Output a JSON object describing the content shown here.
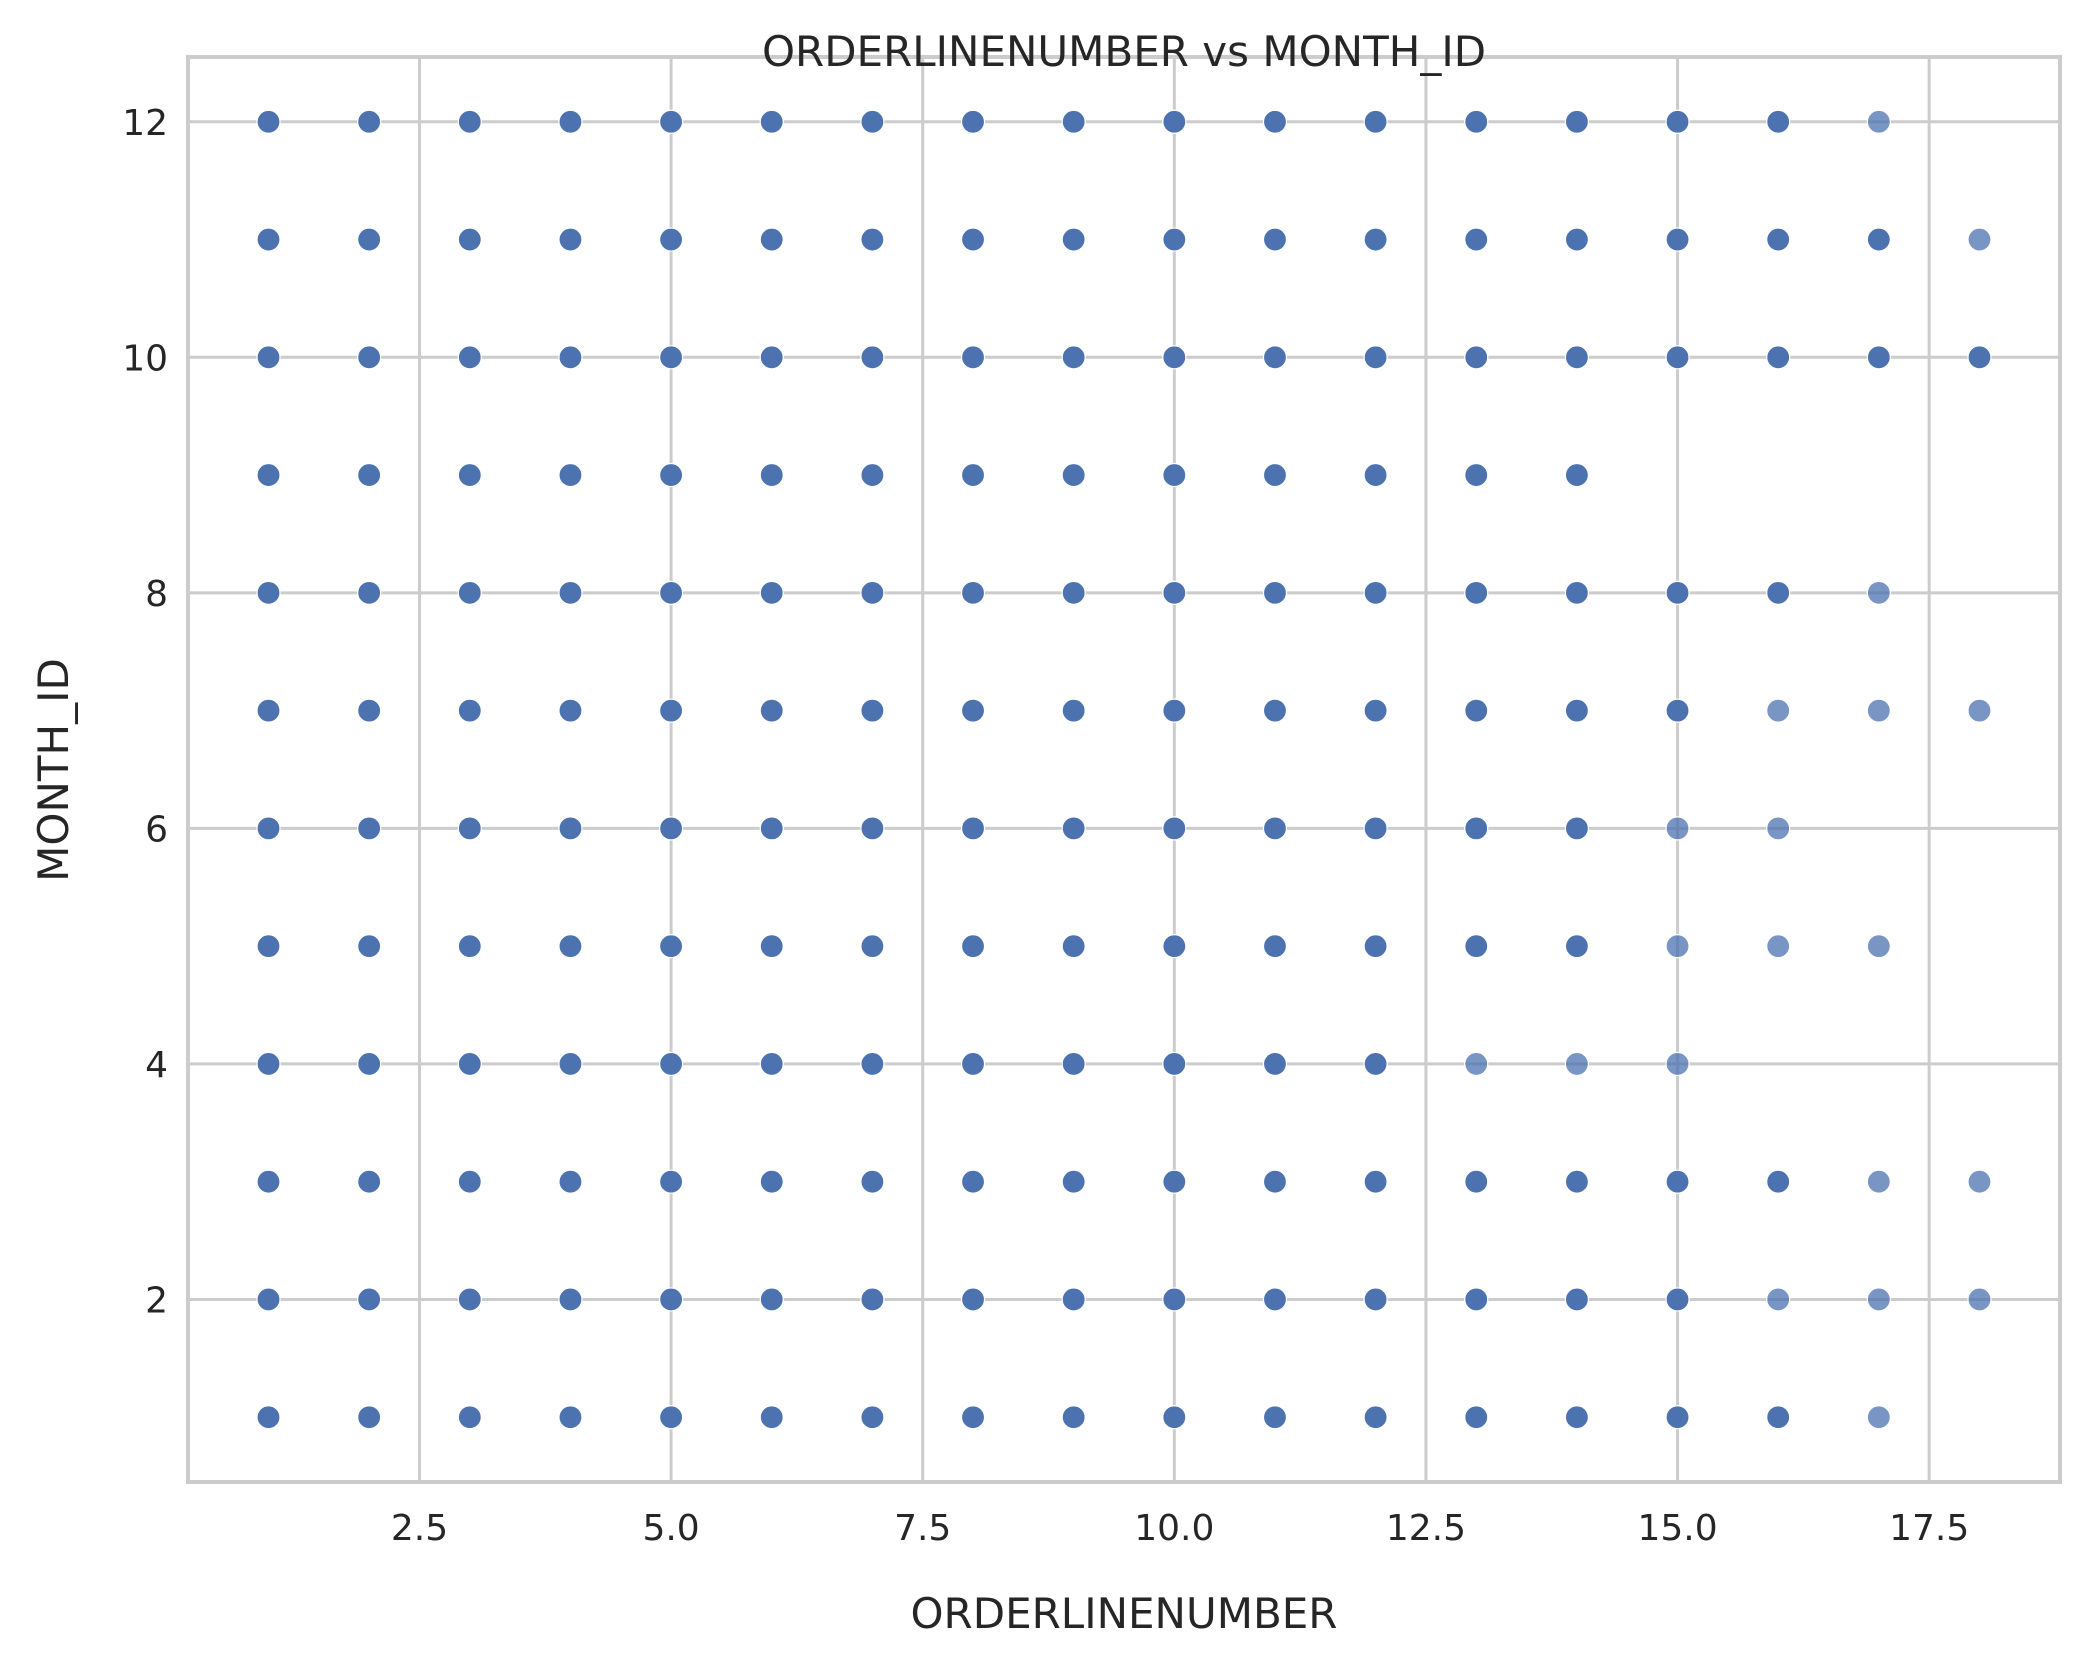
{
  "chart_data": {
    "type": "scatter",
    "title": "ORDERLINENUMBER vs MONTH_ID",
    "xlabel": "ORDERLINENUMBER",
    "ylabel": "MONTH_ID",
    "xlim": [
      0.2,
      18.8
    ],
    "ylim": [
      0.45,
      12.55
    ],
    "xticks": [
      2.5,
      5.0,
      7.5,
      10.0,
      12.5,
      15.0,
      17.5
    ],
    "xtick_labels": [
      "2.5",
      "5.0",
      "7.5",
      "10.0",
      "12.5",
      "15.0",
      "17.5"
    ],
    "yticks": [
      2,
      4,
      6,
      8,
      10,
      12
    ],
    "ytick_labels": [
      "2",
      "4",
      "6",
      "8",
      "10",
      "12"
    ],
    "grid": true,
    "marker_color": "#4c72b0",
    "series": [
      {
        "points": [
          [
            1,
            12
          ],
          [
            2,
            12
          ],
          [
            3,
            12
          ],
          [
            4,
            12
          ],
          [
            5,
            12
          ],
          [
            6,
            12
          ],
          [
            7,
            12
          ],
          [
            8,
            12
          ],
          [
            9,
            12
          ],
          [
            10,
            12
          ],
          [
            11,
            12
          ],
          [
            12,
            12
          ],
          [
            13,
            12
          ],
          [
            14,
            12
          ],
          [
            15,
            12
          ],
          [
            16,
            12
          ],
          [
            17,
            12
          ],
          [
            1,
            11
          ],
          [
            2,
            11
          ],
          [
            3,
            11
          ],
          [
            4,
            11
          ],
          [
            5,
            11
          ],
          [
            6,
            11
          ],
          [
            7,
            11
          ],
          [
            8,
            11
          ],
          [
            9,
            11
          ],
          [
            10,
            11
          ],
          [
            11,
            11
          ],
          [
            12,
            11
          ],
          [
            13,
            11
          ],
          [
            14,
            11
          ],
          [
            15,
            11
          ],
          [
            16,
            11
          ],
          [
            17,
            11
          ],
          [
            18,
            11
          ],
          [
            1,
            10
          ],
          [
            2,
            10
          ],
          [
            3,
            10
          ],
          [
            4,
            10
          ],
          [
            5,
            10
          ],
          [
            6,
            10
          ],
          [
            7,
            10
          ],
          [
            8,
            10
          ],
          [
            9,
            10
          ],
          [
            10,
            10
          ],
          [
            11,
            10
          ],
          [
            12,
            10
          ],
          [
            13,
            10
          ],
          [
            14,
            10
          ],
          [
            15,
            10
          ],
          [
            16,
            10
          ],
          [
            17,
            10
          ],
          [
            18,
            10
          ],
          [
            1,
            9
          ],
          [
            2,
            9
          ],
          [
            3,
            9
          ],
          [
            4,
            9
          ],
          [
            5,
            9
          ],
          [
            6,
            9
          ],
          [
            7,
            9
          ],
          [
            8,
            9
          ],
          [
            9,
            9
          ],
          [
            10,
            9
          ],
          [
            11,
            9
          ],
          [
            12,
            9
          ],
          [
            13,
            9
          ],
          [
            14,
            9
          ],
          [
            1,
            8
          ],
          [
            2,
            8
          ],
          [
            3,
            8
          ],
          [
            4,
            8
          ],
          [
            5,
            8
          ],
          [
            6,
            8
          ],
          [
            7,
            8
          ],
          [
            8,
            8
          ],
          [
            9,
            8
          ],
          [
            10,
            8
          ],
          [
            11,
            8
          ],
          [
            12,
            8
          ],
          [
            13,
            8
          ],
          [
            14,
            8
          ],
          [
            15,
            8
          ],
          [
            16,
            8
          ],
          [
            17,
            8
          ],
          [
            1,
            7
          ],
          [
            2,
            7
          ],
          [
            3,
            7
          ],
          [
            4,
            7
          ],
          [
            5,
            7
          ],
          [
            6,
            7
          ],
          [
            7,
            7
          ],
          [
            8,
            7
          ],
          [
            9,
            7
          ],
          [
            10,
            7
          ],
          [
            11,
            7
          ],
          [
            12,
            7
          ],
          [
            13,
            7
          ],
          [
            14,
            7
          ],
          [
            15,
            7
          ],
          [
            16,
            7
          ],
          [
            17,
            7
          ],
          [
            18,
            7
          ],
          [
            1,
            6
          ],
          [
            2,
            6
          ],
          [
            3,
            6
          ],
          [
            4,
            6
          ],
          [
            5,
            6
          ],
          [
            6,
            6
          ],
          [
            7,
            6
          ],
          [
            8,
            6
          ],
          [
            9,
            6
          ],
          [
            10,
            6
          ],
          [
            11,
            6
          ],
          [
            12,
            6
          ],
          [
            13,
            6
          ],
          [
            14,
            6
          ],
          [
            15,
            6
          ],
          [
            16,
            6
          ],
          [
            1,
            5
          ],
          [
            2,
            5
          ],
          [
            3,
            5
          ],
          [
            4,
            5
          ],
          [
            5,
            5
          ],
          [
            6,
            5
          ],
          [
            7,
            5
          ],
          [
            8,
            5
          ],
          [
            9,
            5
          ],
          [
            10,
            5
          ],
          [
            11,
            5
          ],
          [
            12,
            5
          ],
          [
            13,
            5
          ],
          [
            14,
            5
          ],
          [
            15,
            5
          ],
          [
            16,
            5
          ],
          [
            17,
            5
          ],
          [
            1,
            4
          ],
          [
            2,
            4
          ],
          [
            3,
            4
          ],
          [
            4,
            4
          ],
          [
            5,
            4
          ],
          [
            6,
            4
          ],
          [
            7,
            4
          ],
          [
            8,
            4
          ],
          [
            9,
            4
          ],
          [
            10,
            4
          ],
          [
            11,
            4
          ],
          [
            12,
            4
          ],
          [
            13,
            4
          ],
          [
            14,
            4
          ],
          [
            15,
            4
          ],
          [
            1,
            3
          ],
          [
            2,
            3
          ],
          [
            3,
            3
          ],
          [
            4,
            3
          ],
          [
            5,
            3
          ],
          [
            6,
            3
          ],
          [
            7,
            3
          ],
          [
            8,
            3
          ],
          [
            9,
            3
          ],
          [
            10,
            3
          ],
          [
            11,
            3
          ],
          [
            12,
            3
          ],
          [
            13,
            3
          ],
          [
            14,
            3
          ],
          [
            15,
            3
          ],
          [
            16,
            3
          ],
          [
            17,
            3
          ],
          [
            18,
            3
          ],
          [
            1,
            2
          ],
          [
            2,
            2
          ],
          [
            3,
            2
          ],
          [
            4,
            2
          ],
          [
            5,
            2
          ],
          [
            6,
            2
          ],
          [
            7,
            2
          ],
          [
            8,
            2
          ],
          [
            9,
            2
          ],
          [
            10,
            2
          ],
          [
            11,
            2
          ],
          [
            12,
            2
          ],
          [
            13,
            2
          ],
          [
            14,
            2
          ],
          [
            15,
            2
          ],
          [
            16,
            2
          ],
          [
            17,
            2
          ],
          [
            18,
            2
          ],
          [
            1,
            1
          ],
          [
            2,
            1
          ],
          [
            3,
            1
          ],
          [
            4,
            1
          ],
          [
            5,
            1
          ],
          [
            6,
            1
          ],
          [
            7,
            1
          ],
          [
            8,
            1
          ],
          [
            9,
            1
          ],
          [
            10,
            1
          ],
          [
            11,
            1
          ],
          [
            12,
            1
          ],
          [
            13,
            1
          ],
          [
            14,
            1
          ],
          [
            15,
            1
          ],
          [
            16,
            1
          ],
          [
            17,
            1
          ]
        ],
        "light_points": [
          [
            17,
            12
          ],
          [
            18,
            11
          ],
          [
            17,
            8
          ],
          [
            16,
            7
          ],
          [
            17,
            7
          ],
          [
            18,
            7
          ],
          [
            15,
            6
          ],
          [
            16,
            6
          ],
          [
            15,
            5
          ],
          [
            16,
            5
          ],
          [
            17,
            5
          ],
          [
            13,
            4
          ],
          [
            14,
            4
          ],
          [
            15,
            4
          ],
          [
            17,
            3
          ],
          [
            18,
            3
          ],
          [
            16,
            2
          ],
          [
            17,
            2
          ],
          [
            18,
            2
          ],
          [
            17,
            1
          ]
        ]
      }
    ]
  }
}
